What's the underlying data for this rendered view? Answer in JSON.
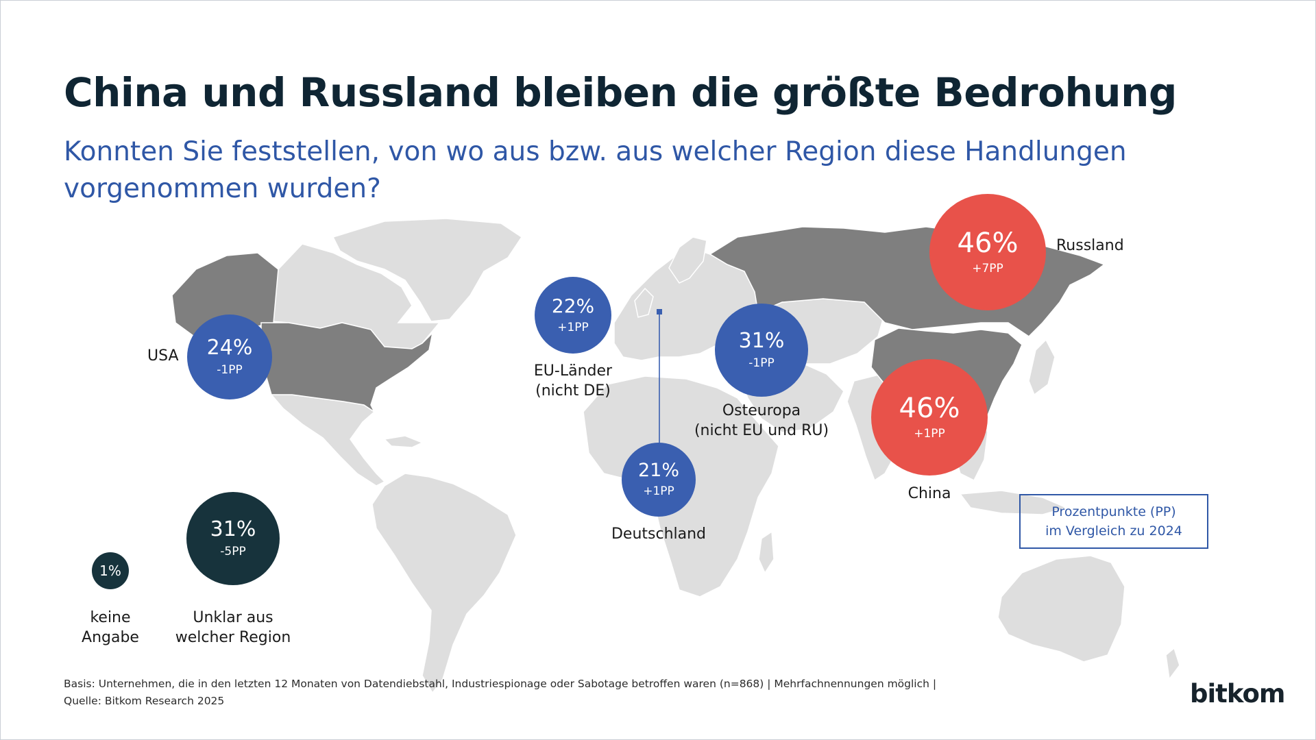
{
  "title": "China und Russland bleiben die größte Bedrohung",
  "subtitle": "Konnten Sie feststellen, von wo aus bzw. aus welcher Region diese Handlungen vorgenommen wurden?",
  "colors": {
    "increase": "#e8524a",
    "region": "#3a5fb0",
    "other": "#17333c",
    "highlight_country": "#7f7f7f",
    "land": "#dedede"
  },
  "regions": [
    {
      "id": "usa",
      "label": "USA",
      "value": "24%",
      "change": "-1PP"
    },
    {
      "id": "eu",
      "label_line1": "EU-Länder",
      "label_line2": "(nicht DE)",
      "value": "22%",
      "change": "+1PP"
    },
    {
      "id": "osteuropa",
      "label_line1": "Osteuropa",
      "label_line2": "(nicht EU und RU)",
      "value": "31%",
      "change": "-1PP"
    },
    {
      "id": "deutschland",
      "label": "Deutschland",
      "value": "21%",
      "change": "+1PP"
    },
    {
      "id": "russland",
      "label": "Russland",
      "value": "46%",
      "change": "+7PP"
    },
    {
      "id": "china",
      "label": "China",
      "value": "46%",
      "change": "+1PP"
    },
    {
      "id": "unklar",
      "label_line1": "Unklar aus",
      "label_line2": "welcher Region",
      "value": "31%",
      "change": "-5PP"
    },
    {
      "id": "keine",
      "label_line1": "keine",
      "label_line2": "Angabe",
      "value": "1%"
    }
  ],
  "legend": {
    "line1": "Prozentpunkte (PP)",
    "line2": "im Vergleich zu 2024"
  },
  "footnote": {
    "line1": "Basis: Unternehmen, die in den letzten 12 Monaten von Datendiebstahl, Industriespionage oder Sabotage betroffen waren (n=868) | Mehrfachnennungen möglich |",
    "line2": "Quelle: Bitkom Research 2025"
  },
  "logo": "bitkom"
}
